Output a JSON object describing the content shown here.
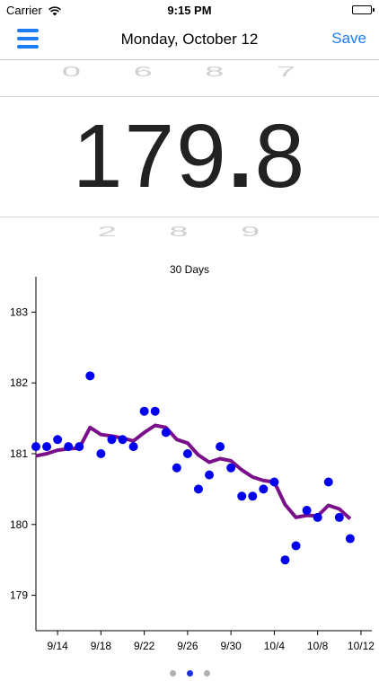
{
  "status_bar": {
    "carrier": "Carrier",
    "time": "9:15 PM"
  },
  "nav": {
    "title": "Monday, October 12",
    "save_label": "Save",
    "menu_icon": "hamburger-icon"
  },
  "picker": {
    "above": "0 6 8 7",
    "value": "179.8",
    "below": "2 8   9"
  },
  "chart_data": {
    "type": "line",
    "title": "30 Days",
    "ylim": [
      178.5,
      183.5
    ],
    "yticks": [
      179,
      180,
      181,
      182,
      183
    ],
    "xlim": [
      "2015-09-12",
      "2015-10-13"
    ],
    "xticks": [
      "9/14",
      "9/18",
      "9/22",
      "9/26",
      "9/30",
      "10/4",
      "10/8",
      "10/12"
    ],
    "xticks_dates": [
      "2015-09-14",
      "2015-09-18",
      "2015-09-22",
      "2015-09-26",
      "2015-09-30",
      "2015-10-04",
      "2015-10-08",
      "2015-10-12"
    ],
    "series": [
      {
        "kind": "scatter",
        "color": "#0000ee",
        "points": [
          [
            "2015-09-12",
            181.1
          ],
          [
            "2015-09-13",
            181.1
          ],
          [
            "2015-09-14",
            181.2
          ],
          [
            "2015-09-15",
            181.1
          ],
          [
            "2015-09-16",
            181.1
          ],
          [
            "2015-09-17",
            182.1
          ],
          [
            "2015-09-18",
            181.0
          ],
          [
            "2015-09-19",
            181.2
          ],
          [
            "2015-09-20",
            181.2
          ],
          [
            "2015-09-21",
            181.1
          ],
          [
            "2015-09-22",
            181.6
          ],
          [
            "2015-09-23",
            181.6
          ],
          [
            "2015-09-24",
            181.3
          ],
          [
            "2015-09-25",
            180.8
          ],
          [
            "2015-09-26",
            181.0
          ],
          [
            "2015-09-27",
            180.5
          ],
          [
            "2015-09-28",
            180.7
          ],
          [
            "2015-09-29",
            181.1
          ],
          [
            "2015-09-30",
            180.8
          ],
          [
            "2015-10-01",
            180.4
          ],
          [
            "2015-10-02",
            180.4
          ],
          [
            "2015-10-03",
            180.5
          ],
          [
            "2015-10-04",
            180.6
          ],
          [
            "2015-10-05",
            179.5
          ],
          [
            "2015-10-06",
            179.7
          ],
          [
            "2015-10-07",
            180.2
          ],
          [
            "2015-10-08",
            180.1
          ],
          [
            "2015-10-09",
            180.6
          ],
          [
            "2015-10-10",
            180.1
          ],
          [
            "2015-10-11",
            179.8
          ]
        ]
      },
      {
        "kind": "line",
        "color": "#7a0f8a",
        "points": [
          [
            "2015-09-12",
            180.97
          ],
          [
            "2015-09-13",
            181.0
          ],
          [
            "2015-09-14",
            181.05
          ],
          [
            "2015-09-15",
            181.07
          ],
          [
            "2015-09-16",
            181.08
          ],
          [
            "2015-09-17",
            181.37
          ],
          [
            "2015-09-18",
            181.27
          ],
          [
            "2015-09-19",
            181.25
          ],
          [
            "2015-09-20",
            181.22
          ],
          [
            "2015-09-21",
            181.18
          ],
          [
            "2015-09-22",
            181.3
          ],
          [
            "2015-09-23",
            181.4
          ],
          [
            "2015-09-24",
            181.37
          ],
          [
            "2015-09-25",
            181.2
          ],
          [
            "2015-09-26",
            181.15
          ],
          [
            "2015-09-27",
            180.98
          ],
          [
            "2015-09-28",
            180.88
          ],
          [
            "2015-09-29",
            180.93
          ],
          [
            "2015-09-30",
            180.9
          ],
          [
            "2015-10-01",
            180.77
          ],
          [
            "2015-10-02",
            180.67
          ],
          [
            "2015-10-03",
            180.62
          ],
          [
            "2015-10-04",
            180.6
          ],
          [
            "2015-10-05",
            180.28
          ],
          [
            "2015-10-06",
            180.1
          ],
          [
            "2015-10-07",
            180.13
          ],
          [
            "2015-10-08",
            180.12
          ],
          [
            "2015-10-09",
            180.27
          ],
          [
            "2015-10-10",
            180.22
          ],
          [
            "2015-10-11",
            180.08
          ]
        ]
      }
    ]
  },
  "page_indicator": {
    "count": 3,
    "active": 1
  }
}
